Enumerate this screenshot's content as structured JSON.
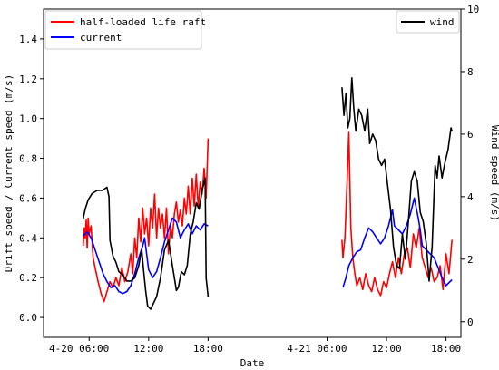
{
  "chart_data": {
    "type": "line",
    "xlabel": "Date",
    "ylabel_left": "Drift speed / Current speed (m/s)",
    "ylabel_right": "Wind speed (m/s)",
    "x_tick_labels": [
      "4-20 06:00",
      "12:00",
      "18:00",
      "4-21 06:00",
      "12:00",
      "18:00"
    ],
    "x_tick_hours": [
      6,
      12,
      18,
      30,
      36,
      42
    ],
    "xlim_hours": [
      1.4,
      43.5
    ],
    "ylim_left": [
      -0.1,
      1.55
    ],
    "yticks_left": [
      0.0,
      0.2,
      0.4,
      0.6,
      0.8,
      1.0,
      1.2,
      1.4
    ],
    "ylim_right": [
      -0.5,
      10.0
    ],
    "yticks_right": [
      0,
      2,
      4,
      6,
      8,
      10
    ],
    "legend_left": {
      "position": "top-left",
      "entries": [
        "half-loaded life raft",
        "current"
      ]
    },
    "legend_right": {
      "position": "top-right",
      "entries": [
        "wind"
      ]
    },
    "series": [
      {
        "name": "half-loaded life raft",
        "axis": "left",
        "color": "#ff0000",
        "segments": [
          [
            [
              5.4,
              0.36
            ],
            [
              5.5,
              0.45
            ],
            [
              5.6,
              0.4
            ],
            [
              5.7,
              0.49
            ],
            [
              5.8,
              0.35
            ],
            [
              5.9,
              0.5
            ],
            [
              6.0,
              0.42
            ],
            [
              6.2,
              0.46
            ],
            [
              6.4,
              0.3
            ],
            [
              6.6,
              0.25
            ],
            [
              6.9,
              0.18
            ],
            [
              7.2,
              0.12
            ],
            [
              7.5,
              0.08
            ],
            [
              7.8,
              0.13
            ],
            [
              8.1,
              0.18
            ],
            [
              8.4,
              0.15
            ],
            [
              8.7,
              0.2
            ],
            [
              9.0,
              0.16
            ],
            [
              9.3,
              0.25
            ],
            [
              9.6,
              0.18
            ],
            [
              9.9,
              0.23
            ],
            [
              10.2,
              0.32
            ],
            [
              10.4,
              0.22
            ],
            [
              10.6,
              0.4
            ],
            [
              10.8,
              0.3
            ],
            [
              11.0,
              0.5
            ],
            [
              11.2,
              0.38
            ],
            [
              11.4,
              0.55
            ],
            [
              11.6,
              0.42
            ],
            [
              11.8,
              0.5
            ],
            [
              12.0,
              0.36
            ],
            [
              12.2,
              0.55
            ],
            [
              12.4,
              0.45
            ],
            [
              12.6,
              0.62
            ],
            [
              12.8,
              0.4
            ],
            [
              13.0,
              0.55
            ],
            [
              13.2,
              0.45
            ],
            [
              13.4,
              0.52
            ],
            [
              13.6,
              0.4
            ],
            [
              13.8,
              0.55
            ],
            [
              14.0,
              0.32
            ],
            [
              14.2,
              0.46
            ],
            [
              14.4,
              0.4
            ],
            [
              14.6,
              0.52
            ],
            [
              14.8,
              0.58
            ],
            [
              15.0,
              0.48
            ],
            [
              15.2,
              0.54
            ],
            [
              15.4,
              0.46
            ],
            [
              15.6,
              0.6
            ],
            [
              15.8,
              0.52
            ],
            [
              16.0,
              0.66
            ],
            [
              16.2,
              0.52
            ],
            [
              16.4,
              0.7
            ],
            [
              16.6,
              0.56
            ],
            [
              16.8,
              0.72
            ],
            [
              17.0,
              0.55
            ],
            [
              17.2,
              0.68
            ],
            [
              17.4,
              0.62
            ],
            [
              17.6,
              0.75
            ],
            [
              17.8,
              0.6
            ],
            [
              18.0,
              0.9
            ]
          ],
          [
            [
              31.5,
              0.39
            ],
            [
              31.6,
              0.3
            ],
            [
              31.8,
              0.4
            ],
            [
              32.0,
              0.65
            ],
            [
              32.2,
              0.93
            ],
            [
              32.4,
              0.45
            ],
            [
              32.6,
              0.3
            ],
            [
              32.8,
              0.22
            ],
            [
              33.0,
              0.16
            ],
            [
              33.3,
              0.2
            ],
            [
              33.6,
              0.14
            ],
            [
              33.9,
              0.22
            ],
            [
              34.2,
              0.16
            ],
            [
              34.5,
              0.13
            ],
            [
              34.8,
              0.2
            ],
            [
              35.1,
              0.14
            ],
            [
              35.4,
              0.11
            ],
            [
              35.7,
              0.18
            ],
            [
              36.0,
              0.15
            ],
            [
              36.3,
              0.22
            ],
            [
              36.6,
              0.28
            ],
            [
              36.9,
              0.2
            ],
            [
              37.2,
              0.3
            ],
            [
              37.5,
              0.22
            ],
            [
              37.8,
              0.32
            ],
            [
              38.1,
              0.35
            ],
            [
              38.4,
              0.25
            ],
            [
              38.7,
              0.42
            ],
            [
              39.0,
              0.35
            ],
            [
              39.3,
              0.45
            ],
            [
              39.6,
              0.3
            ],
            [
              39.9,
              0.25
            ],
            [
              40.2,
              0.2
            ],
            [
              40.5,
              0.25
            ],
            [
              40.8,
              0.18
            ],
            [
              41.1,
              0.2
            ],
            [
              41.4,
              0.26
            ],
            [
              41.7,
              0.14
            ],
            [
              42.0,
              0.32
            ],
            [
              42.3,
              0.22
            ],
            [
              42.6,
              0.39
            ]
          ]
        ]
      },
      {
        "name": "current",
        "axis": "left",
        "color": "#0000ff",
        "segments": [
          [
            [
              5.4,
              0.41
            ],
            [
              5.8,
              0.43
            ],
            [
              6.2,
              0.4
            ],
            [
              6.6,
              0.34
            ],
            [
              7.0,
              0.28
            ],
            [
              7.4,
              0.22
            ],
            [
              7.8,
              0.18
            ],
            [
              8.2,
              0.15
            ],
            [
              8.6,
              0.16
            ],
            [
              9.0,
              0.13
            ],
            [
              9.4,
              0.12
            ],
            [
              9.8,
              0.13
            ],
            [
              10.2,
              0.16
            ],
            [
              10.6,
              0.22
            ],
            [
              11.0,
              0.3
            ],
            [
              11.4,
              0.36
            ],
            [
              11.6,
              0.4
            ],
            [
              11.8,
              0.32
            ],
            [
              12.0,
              0.24
            ],
            [
              12.4,
              0.2
            ],
            [
              12.8,
              0.23
            ],
            [
              13.2,
              0.3
            ],
            [
              13.6,
              0.38
            ],
            [
              14.0,
              0.44
            ],
            [
              14.4,
              0.5
            ],
            [
              14.8,
              0.48
            ],
            [
              15.2,
              0.4
            ],
            [
              15.6,
              0.44
            ],
            [
              16.0,
              0.47
            ],
            [
              16.4,
              0.42
            ],
            [
              16.8,
              0.46
            ],
            [
              17.2,
              0.44
            ],
            [
              17.6,
              0.47
            ],
            [
              18.0,
              0.46
            ]
          ],
          [
            [
              31.6,
              0.15
            ],
            [
              31.9,
              0.2
            ],
            [
              32.2,
              0.26
            ],
            [
              32.6,
              0.3
            ],
            [
              33.0,
              0.33
            ],
            [
              33.4,
              0.34
            ],
            [
              33.8,
              0.4
            ],
            [
              34.2,
              0.45
            ],
            [
              34.6,
              0.43
            ],
            [
              35.0,
              0.4
            ],
            [
              35.4,
              0.37
            ],
            [
              35.8,
              0.4
            ],
            [
              36.2,
              0.46
            ],
            [
              36.6,
              0.54
            ],
            [
              36.8,
              0.46
            ],
            [
              37.2,
              0.44
            ],
            [
              37.6,
              0.42
            ],
            [
              38.0,
              0.46
            ],
            [
              38.4,
              0.52
            ],
            [
              38.8,
              0.6
            ],
            [
              39.2,
              0.5
            ],
            [
              39.4,
              0.44
            ],
            [
              39.6,
              0.36
            ],
            [
              40.0,
              0.34
            ],
            [
              40.4,
              0.32
            ],
            [
              40.8,
              0.3
            ],
            [
              41.2,
              0.25
            ],
            [
              41.6,
              0.2
            ],
            [
              42.0,
              0.16
            ],
            [
              42.6,
              0.19
            ]
          ]
        ]
      },
      {
        "name": "wind",
        "axis": "right",
        "color": "#000000",
        "segments": [
          [
            [
              5.4,
              3.3
            ],
            [
              5.6,
              3.6
            ],
            [
              5.9,
              3.9
            ],
            [
              6.3,
              4.1
            ],
            [
              6.8,
              4.2
            ],
            [
              7.3,
              4.2
            ],
            [
              7.8,
              4.3
            ],
            [
              8.0,
              4.0
            ],
            [
              8.1,
              2.6
            ],
            [
              8.4,
              2.1
            ],
            [
              8.7,
              1.9
            ],
            [
              9.0,
              1.6
            ],
            [
              9.4,
              1.5
            ],
            [
              9.8,
              1.3
            ],
            [
              10.2,
              1.3
            ],
            [
              10.6,
              1.4
            ],
            [
              11.0,
              1.8
            ],
            [
              11.3,
              2.3
            ],
            [
              11.5,
              1.6
            ],
            [
              11.7,
              1.0
            ],
            [
              11.9,
              0.5
            ],
            [
              12.2,
              0.4
            ],
            [
              12.5,
              0.6
            ],
            [
              12.8,
              0.8
            ],
            [
              13.2,
              1.4
            ],
            [
              13.6,
              2.3
            ],
            [
              14.0,
              2.6
            ],
            [
              14.2,
              2.2
            ],
            [
              14.4,
              1.8
            ],
            [
              14.6,
              1.4
            ],
            [
              14.8,
              1.0
            ],
            [
              15.0,
              1.1
            ],
            [
              15.3,
              1.6
            ],
            [
              15.6,
              1.5
            ],
            [
              15.9,
              1.8
            ],
            [
              16.2,
              2.8
            ],
            [
              16.5,
              3.2
            ],
            [
              16.8,
              3.8
            ],
            [
              17.1,
              3.6
            ],
            [
              17.4,
              4.2
            ],
            [
              17.7,
              4.6
            ],
            [
              17.8,
              1.4
            ],
            [
              18.0,
              0.8
            ]
          ],
          [
            [
              31.5,
              7.5
            ],
            [
              31.7,
              6.6
            ],
            [
              31.9,
              7.3
            ],
            [
              32.1,
              6.2
            ],
            [
              32.3,
              6.5
            ],
            [
              32.5,
              7.8
            ],
            [
              32.7,
              6.8
            ],
            [
              32.9,
              6.1
            ],
            [
              33.2,
              6.8
            ],
            [
              33.5,
              6.6
            ],
            [
              33.8,
              6.1
            ],
            [
              34.1,
              6.8
            ],
            [
              34.3,
              5.7
            ],
            [
              34.6,
              6.0
            ],
            [
              34.9,
              5.8
            ],
            [
              35.2,
              5.2
            ],
            [
              35.5,
              5.0
            ],
            [
              35.8,
              5.2
            ],
            [
              36.1,
              4.4
            ],
            [
              36.4,
              3.6
            ],
            [
              36.7,
              2.4
            ],
            [
              37.0,
              1.8
            ],
            [
              37.3,
              1.7
            ],
            [
              37.6,
              2.8
            ],
            [
              37.9,
              2.0
            ],
            [
              38.2,
              3.2
            ],
            [
              38.5,
              4.5
            ],
            [
              38.8,
              4.8
            ],
            [
              39.1,
              4.5
            ],
            [
              39.4,
              3.5
            ],
            [
              39.7,
              3.2
            ],
            [
              40.0,
              2.5
            ],
            [
              40.3,
              1.3
            ],
            [
              40.6,
              2.4
            ],
            [
              40.9,
              5.0
            ],
            [
              41.1,
              4.6
            ],
            [
              41.3,
              5.3
            ],
            [
              41.6,
              4.6
            ],
            [
              41.9,
              5.1
            ],
            [
              42.2,
              5.5
            ],
            [
              42.5,
              6.2
            ],
            [
              42.6,
              6.1
            ]
          ]
        ]
      }
    ]
  }
}
